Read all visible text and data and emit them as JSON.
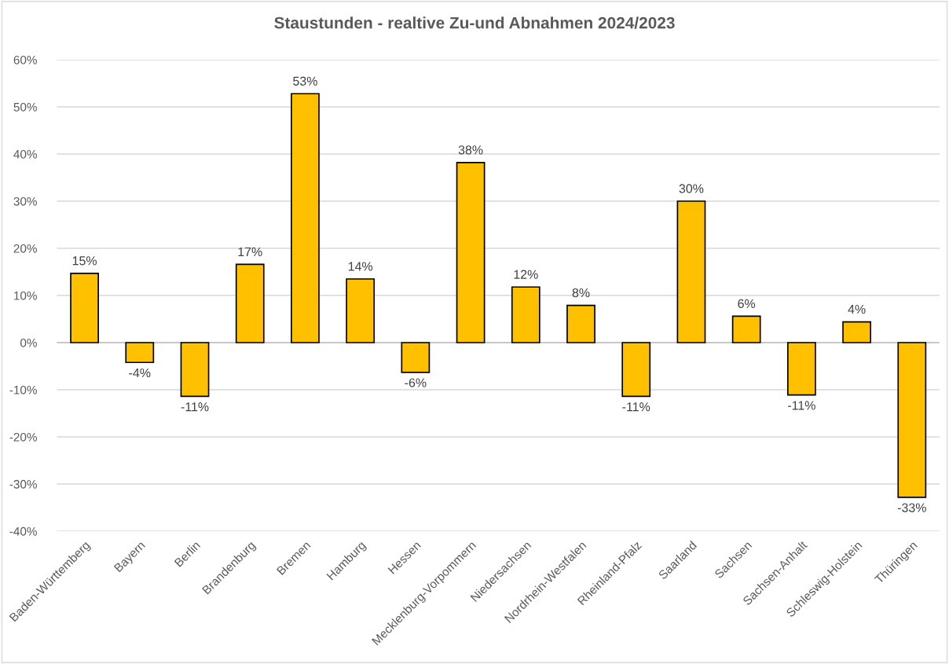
{
  "chart_data": {
    "type": "bar",
    "title": "Staustunden - realtive Zu-und Abnahmen 2024/2023",
    "categories": [
      "Baden-Württemberg",
      "Bayern",
      "Berlin",
      "Brandenburg",
      "Bremen",
      "Hamburg",
      "Hessen",
      "Mecklenburg-Vorpommern",
      "Niedersachsen",
      "Nordrhein-Westfalen",
      "Rheinland-Pfalz",
      "Saarland",
      "Sachsen",
      "Sachsen-Anhalt",
      "Schleswig-Holstein",
      "Thüringen"
    ],
    "values": [
      14.7,
      -4.2,
      -11.4,
      16.6,
      52.8,
      13.5,
      -6.3,
      38.2,
      11.8,
      7.9,
      -11.4,
      30.0,
      5.6,
      -11.1,
      4.4,
      -32.8
    ],
    "value_labels": [
      "15%",
      "-4%",
      "-11%",
      "17%",
      "53%",
      "14%",
      "-6%",
      "38%",
      "12%",
      "8%",
      "-11%",
      "30%",
      "6%",
      "-11%",
      "4%",
      "-33%"
    ],
    "color": "#ffc000",
    "ylim": [
      -40,
      60
    ],
    "yticks": [
      {
        "value": -40,
        "label": "-40%"
      },
      {
        "value": -30,
        "label": "-30%"
      },
      {
        "value": -20,
        "label": "-20%"
      },
      {
        "value": -10,
        "label": "-10%"
      },
      {
        "value": 0,
        "label": "0%"
      },
      {
        "value": 10,
        "label": "10%"
      },
      {
        "value": 20,
        "label": "20%"
      },
      {
        "value": 30,
        "label": "30%"
      },
      {
        "value": 40,
        "label": "40%"
      },
      {
        "value": 50,
        "label": "50%"
      },
      {
        "value": 60,
        "label": "60%"
      }
    ],
    "grid": "y"
  }
}
